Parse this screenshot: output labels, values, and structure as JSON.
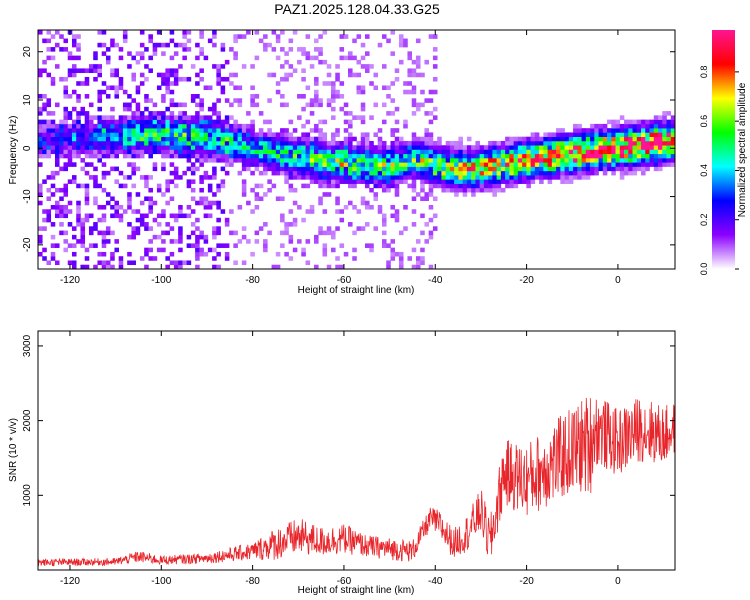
{
  "title": "PAZ1.2025.128.04.33.G25",
  "chart_data": [
    {
      "type": "heatmap",
      "xlabel": "Height of straight line (km)",
      "ylabel": "Frequency (Hz)",
      "xlim": [
        -127,
        12.5
      ],
      "ylim": [
        -25,
        24.5
      ],
      "xticks": [
        -120,
        -100,
        -80,
        -60,
        -40,
        -20,
        0
      ],
      "yticks": [
        -20,
        -10,
        0,
        10,
        20
      ],
      "colorbar": {
        "label": "Normalized spectral amplitude",
        "range": [
          0,
          0.97
        ],
        "ticks": [
          "0.0",
          "0.2",
          "0.4",
          "0.6",
          "0.8"
        ],
        "colors": [
          "#ffffff",
          "#8c00ff",
          "#0000ff",
          "#00ffff",
          "#00ff00",
          "#ffff00",
          "#ff0000",
          "#ff1493"
        ]
      },
      "ridge": {
        "x": [
          -127,
          -120,
          -110,
          -100,
          -90,
          -80,
          -70,
          -60,
          -50,
          -45,
          -40,
          -35,
          -30,
          -20,
          -10,
          0,
          12.5
        ],
        "y": [
          1.5,
          2,
          2.5,
          3,
          2.5,
          0,
          -2,
          -3,
          -4,
          -2,
          -3.5,
          -4.5,
          -4,
          -2.5,
          -1,
          0,
          1.5
        ],
        "peak": [
          0.15,
          0.2,
          0.3,
          0.45,
          0.4,
          0.35,
          0.45,
          0.5,
          0.5,
          0.45,
          0.55,
          0.65,
          0.65,
          0.7,
          0.8,
          0.9,
          0.9
        ]
      }
    },
    {
      "type": "line",
      "xlabel": "Height of straight line (km)",
      "ylabel": "SNR (10 * v/v)",
      "xlim": [
        -127,
        12.5
      ],
      "ylim": [
        0,
        3200
      ],
      "xticks": [
        -120,
        -100,
        -80,
        -60,
        -40,
        -20,
        0
      ],
      "yticks": [
        1000,
        2000,
        3000
      ],
      "color": "#e8252a",
      "envelope": {
        "x": [
          -127,
          -110,
          -105,
          -100,
          -90,
          -80,
          -75,
          -70,
          -65,
          -60,
          -55,
          -45,
          -41,
          -39,
          -36,
          -33,
          -30,
          -28,
          -25,
          -20,
          -15,
          -10,
          -6,
          -5,
          0,
          5,
          10,
          12.5
        ],
        "base": [
          100,
          110,
          180,
          130,
          160,
          250,
          350,
          450,
          380,
          420,
          320,
          250,
          700,
          600,
          350,
          500,
          800,
          350,
          1300,
          1200,
          1400,
          1600,
          1700,
          1900,
          1700,
          1900,
          1800,
          1900
        ],
        "amp": [
          50,
          50,
          80,
          60,
          70,
          120,
          220,
          250,
          200,
          200,
          150,
          150,
          150,
          200,
          200,
          250,
          300,
          350,
          450,
          500,
          550,
          600,
          700,
          500,
          450,
          450,
          400,
          350
        ]
      }
    }
  ]
}
